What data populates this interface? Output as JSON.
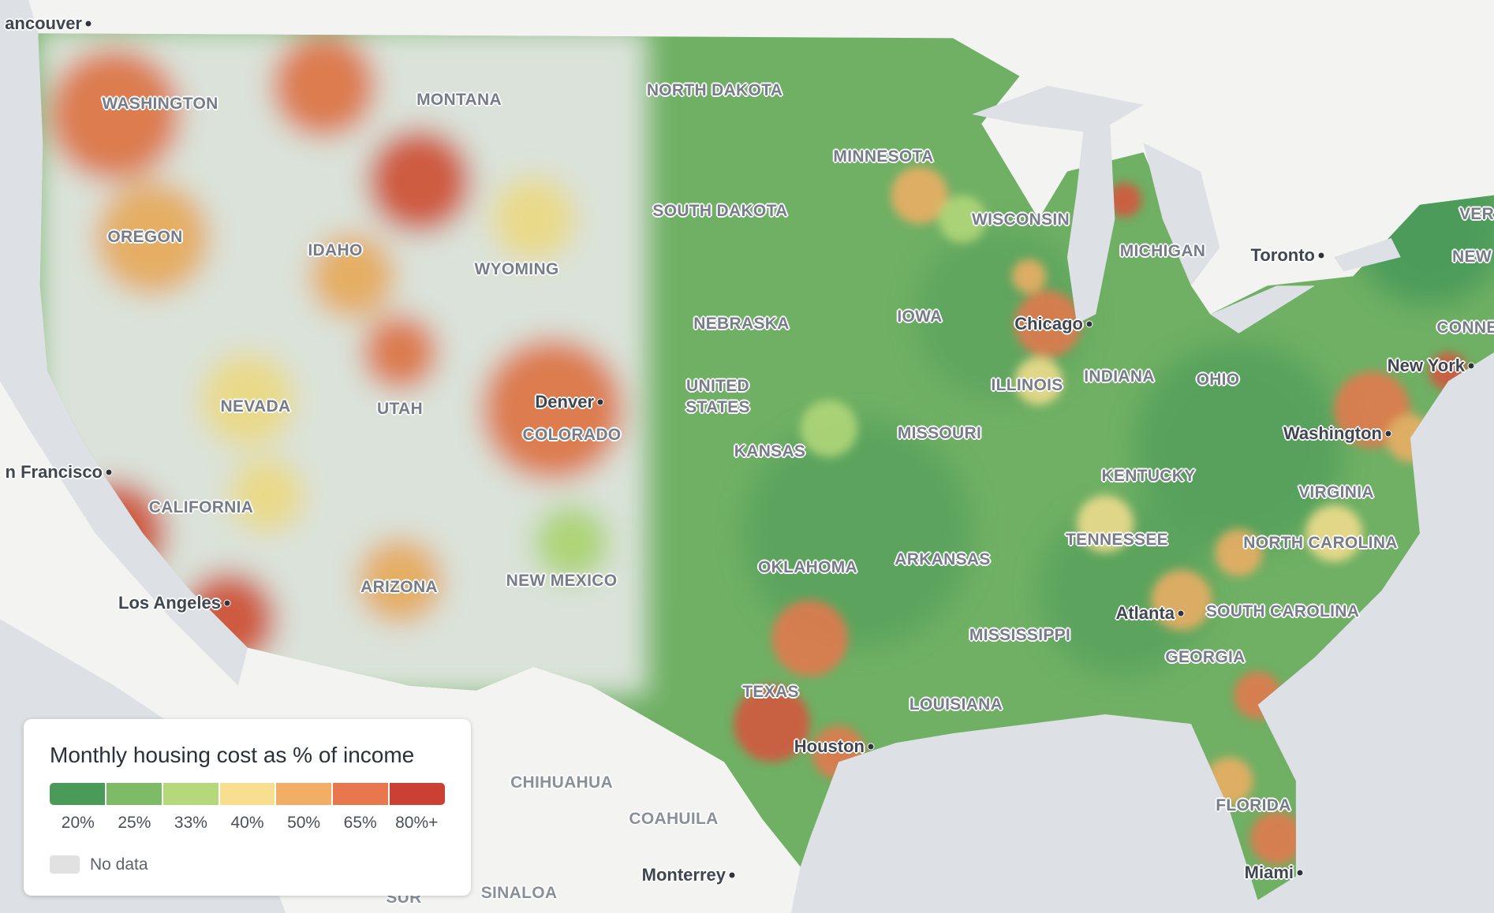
{
  "state_labels": [
    "WASHINGTON",
    "MONTANA",
    "NORTH DAKOTA",
    "MINNESOTA",
    "SOUTH DAKOTA",
    "WISCONSIN",
    "MICHIGAN",
    "OREGON",
    "IDAHO",
    "WYOMING",
    "NEBRASKA",
    "IOWA",
    "ILLINOIS",
    "INDIANA",
    "OHIO",
    "UNITED STATES",
    "NEVADA",
    "UTAH",
    "COLORADO",
    "KANSAS",
    "MISSOURI",
    "KENTUCKY",
    "VIRGINIA",
    "CALIFORNIA",
    "TENNESSEE",
    "NORTH CAROLINA",
    "ARKANSAS",
    "OKLAHOMA",
    "NEW MEXICO",
    "ARIZONA",
    "SOUTH CAROLINA",
    "MISSISSIPPI",
    "GEORGIA",
    "TEXAS",
    "LOUISIANA",
    "FLORIDA",
    "VER",
    "NEW",
    "CONNE",
    "CHIHUAHUA",
    "COAHUILA",
    "SINALOA",
    "SUR"
  ],
  "city_labels": [
    "ancouver",
    "n Francisco",
    "Los Angeles",
    "Denver",
    "Chicago",
    "Toronto",
    "New York",
    "Washington",
    "Atlanta",
    "Houston",
    "Miami",
    "Monterrey"
  ],
  "legend": {
    "title": "Monthly housing cost as % of income",
    "labels": [
      "20%",
      "25%",
      "33%",
      "40%",
      "50%",
      "65%",
      "80%+"
    ],
    "colors": [
      "#4a9a5a",
      "#7dbb67",
      "#b5d97a",
      "#f7df8f",
      "#f2ae65",
      "#e8774d",
      "#cc3f33"
    ],
    "no_data": "No data"
  }
}
